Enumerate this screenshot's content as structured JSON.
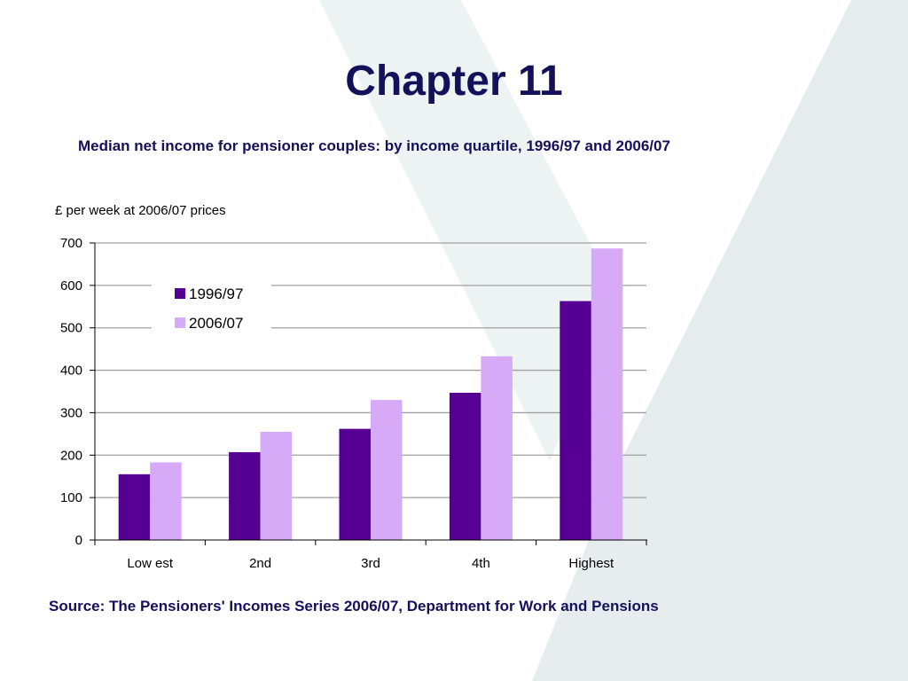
{
  "slide": {
    "title": "Chapter 11",
    "source": "Source: The Pensioners' Incomes Series 2006/07, Department for Work and Pensions"
  },
  "colors": {
    "title": "#14115a",
    "series_1": "#560093",
    "series_2": "#d7aaf8",
    "gridline": "#a0a0a0",
    "watermark": "#e7edef"
  },
  "chart_data": {
    "type": "bar",
    "title": "Median net income for pensioner couples: by income quartile, 1996/97 and 2006/07",
    "ylabel": "£ per week at 2006/07 prices",
    "xlabel": "",
    "categories": [
      "Low est",
      "2nd",
      "3rd",
      "4th",
      "Highest"
    ],
    "series": [
      {
        "name": "1996/97",
        "values": [
          155,
          207,
          262,
          347,
          563
        ]
      },
      {
        "name": "2006/07",
        "values": [
          183,
          255,
          330,
          433,
          687
        ]
      }
    ],
    "ylim": [
      0,
      700
    ],
    "yticks": [
      0,
      100,
      200,
      300,
      400,
      500,
      600,
      700
    ],
    "grid": true,
    "legend": "top-left"
  }
}
